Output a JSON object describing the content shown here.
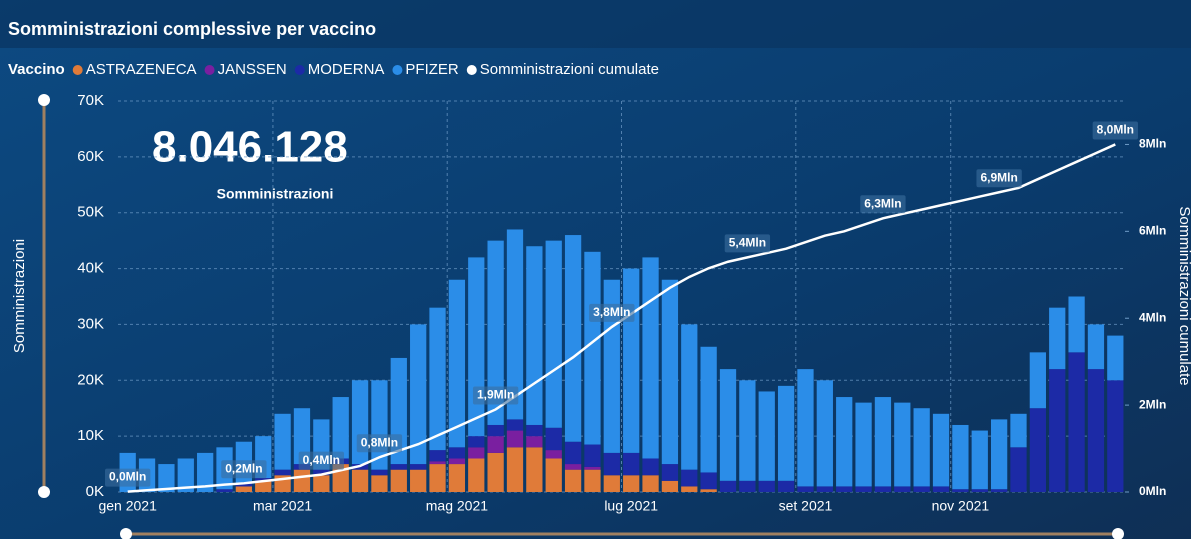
{
  "chart_data": {
    "type": "bar",
    "title": "Somministrazioni complessive per vaccino",
    "legend_title": "Vaccino",
    "kpi": {
      "value": "8.046.128",
      "caption": "Somministrazioni"
    },
    "y_label": "Somministrazioni",
    "y2_label": "Somministrazioni cumulate",
    "categories": [
      "gen 2021",
      null,
      null,
      null,
      null,
      null,
      null,
      null,
      "mar 2021",
      null,
      null,
      null,
      null,
      null,
      null,
      null,
      null,
      "mag 2021",
      null,
      null,
      null,
      null,
      null,
      null,
      null,
      null,
      "lug 2021",
      null,
      null,
      null,
      null,
      null,
      null,
      null,
      null,
      "set 2021",
      null,
      null,
      null,
      null,
      null,
      null,
      null,
      "nov 2021",
      null,
      null,
      null,
      null,
      null,
      null,
      null,
      null
    ],
    "series": [
      {
        "name": "ASTRAZENECA",
        "color": "#e07b39",
        "values": [
          0,
          0,
          0,
          0,
          0,
          0,
          1000,
          2000,
          3000,
          4000,
          3000,
          5000,
          4000,
          3000,
          4000,
          4000,
          5000,
          5000,
          6000,
          7000,
          8000,
          8000,
          6000,
          4000,
          4000,
          3000,
          3000,
          3000,
          2000,
          1000,
          500,
          0,
          0,
          0,
          0,
          0,
          0,
          0,
          0,
          0,
          0,
          0,
          0,
          0,
          0,
          0,
          0,
          0,
          0,
          0,
          0,
          0
        ]
      },
      {
        "name": "JANSSEN",
        "color": "#7a1fa0",
        "values": [
          0,
          0,
          0,
          0,
          0,
          0,
          0,
          0,
          0,
          0,
          0,
          0,
          0,
          0,
          0,
          0,
          500,
          1000,
          2000,
          3000,
          3000,
          2000,
          1500,
          1000,
          500,
          0,
          0,
          0,
          0,
          0,
          0,
          0,
          0,
          0,
          0,
          0,
          0,
          0,
          0,
          0,
          0,
          0,
          0,
          0,
          0,
          0,
          0,
          0,
          0,
          0,
          0,
          0
        ]
      },
      {
        "name": "MODERNA",
        "color": "#1c2aa6",
        "values": [
          0,
          0,
          0,
          0,
          0,
          500,
          500,
          500,
          1000,
          1000,
          1000,
          1000,
          1000,
          1000,
          1000,
          1000,
          2000,
          2000,
          2000,
          2000,
          2000,
          2000,
          4000,
          4000,
          4000,
          4000,
          4000,
          3000,
          3000,
          3000,
          3000,
          2000,
          2000,
          2000,
          2000,
          1000,
          1000,
          1000,
          1000,
          1000,
          1000,
          1000,
          1000,
          500,
          500,
          500,
          8000,
          15000,
          22000,
          25000,
          22000,
          20000
        ]
      },
      {
        "name": "PFIZER",
        "color": "#2b8de8",
        "values": [
          7000,
          6000,
          5000,
          6000,
          7000,
          7500,
          7500,
          7500,
          10000,
          10000,
          9000,
          11000,
          15000,
          16000,
          19000,
          25000,
          25500,
          30000,
          32000,
          33000,
          34000,
          32000,
          33500,
          37000,
          34500,
          31000,
          33000,
          36000,
          33000,
          26000,
          22500,
          20000,
          18000,
          16000,
          17000,
          21000,
          19000,
          16000,
          15000,
          16000,
          15000,
          14000,
          13000,
          11500,
          10500,
          12500,
          6000,
          10000,
          11000,
          10000,
          8000,
          8000
        ]
      },
      {
        "name": "Somministrazioni cumulate",
        "color": "#ffffff",
        "type": "line",
        "axis": "y2",
        "values": [
          10000,
          40000,
          70000,
          100000,
          130000,
          170000,
          200000,
          250000,
          300000,
          350000,
          400000,
          500000,
          600000,
          800000,
          950000,
          1100000,
          1300000,
          1500000,
          1700000,
          1900000,
          2200000,
          2500000,
          2800000,
          3100000,
          3450000,
          3800000,
          4100000,
          4400000,
          4700000,
          4950000,
          5150000,
          5300000,
          5400000,
          5500000,
          5600000,
          5750000,
          5900000,
          6000000,
          6150000,
          6300000,
          6400000,
          6500000,
          6600000,
          6700000,
          6800000,
          6900000,
          7000000,
          7200000,
          7400000,
          7600000,
          7800000,
          8000000
        ],
        "value_labels": [
          "0,0Mln",
          null,
          null,
          null,
          null,
          null,
          "0,2Mln",
          null,
          null,
          null,
          "0,4Mln",
          null,
          null,
          "0,8Mln",
          null,
          null,
          null,
          null,
          null,
          "1,9Mln",
          null,
          null,
          null,
          null,
          null,
          "3,8Mln",
          null,
          null,
          null,
          null,
          null,
          null,
          "5,4Mln",
          null,
          null,
          null,
          null,
          null,
          null,
          "6,3Mln",
          null,
          null,
          null,
          null,
          null,
          "6,9Mln",
          null,
          null,
          null,
          null,
          null,
          "8,0Mln"
        ]
      }
    ],
    "ylim": [
      0,
      70000
    ],
    "yticks": [
      {
        "value": 0,
        "label": "0K"
      },
      {
        "value": 10000,
        "label": "10K"
      },
      {
        "value": 20000,
        "label": "20K"
      },
      {
        "value": 30000,
        "label": "30K"
      },
      {
        "value": 40000,
        "label": "40K"
      },
      {
        "value": 50000,
        "label": "50K"
      },
      {
        "value": 60000,
        "label": "60K"
      },
      {
        "value": 70000,
        "label": "70K"
      }
    ],
    "y2lim": [
      0,
      9000000
    ],
    "y2ticks": [
      {
        "value": 0,
        "label": "0Mln"
      },
      {
        "value": 2000000,
        "label": "2Mln"
      },
      {
        "value": 4000000,
        "label": "4Mln"
      },
      {
        "value": 6000000,
        "label": "6Mln"
      },
      {
        "value": 8000000,
        "label": "8Mln"
      }
    ],
    "grid": true
  }
}
